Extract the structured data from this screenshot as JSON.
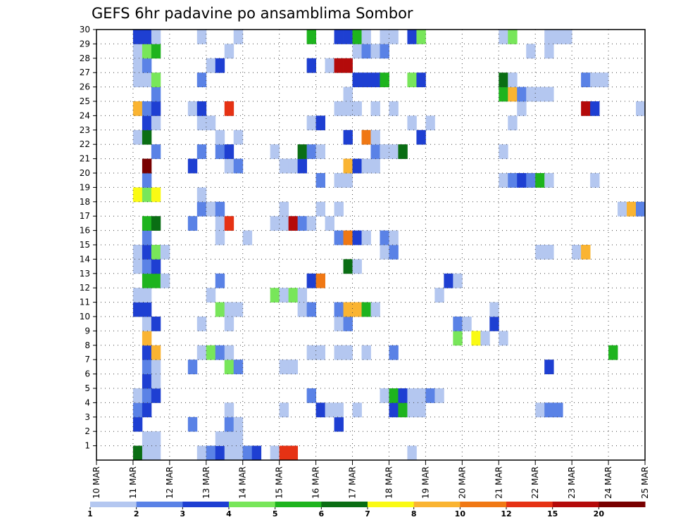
{
  "chart_data": {
    "type": "heatmap",
    "title": "GEFS 6hr padavine po ansamblima Sombor",
    "xlabel": "",
    "ylabel": "",
    "x_ticks": [
      "10 MAR",
      "11 MAR",
      "12 MAR",
      "13 MAR",
      "14 MAR",
      "15 MAR",
      "16 MAR",
      "17 MAR",
      "18 MAR",
      "19 MAR",
      "20 MAR",
      "21 MAR",
      "22 MAR",
      "23 MAR",
      "24 MAR",
      "25 MAR"
    ],
    "y_ticks": [
      "1",
      "2",
      "3",
      "4",
      "5",
      "6",
      "7",
      "8",
      "9",
      "10",
      "11",
      "12",
      "13",
      "14",
      "15",
      "16",
      "17",
      "18",
      "19",
      "20",
      "21",
      "22",
      "23",
      "24",
      "25",
      "26",
      "27",
      "28",
      "29",
      "30"
    ],
    "x_unit": "days since 10 MAR",
    "xlim": [
      0,
      15
    ],
    "ylim": [
      0,
      30
    ],
    "grid": true,
    "colorbar": {
      "bounds": [
        1,
        2,
        3,
        4,
        5,
        6,
        7,
        8,
        10,
        12,
        15,
        20
      ],
      "labels": [
        "1",
        "2",
        "3",
        "4",
        "5",
        "6",
        "7",
        "8",
        "10",
        "12",
        "15",
        "20"
      ],
      "colors": [
        "#b4c7f0",
        "#5a82e6",
        "#1e3fd2",
        "#78e65a",
        "#1eb41e",
        "#0a6e14",
        "#fafa14",
        "#fab432",
        "#f07814",
        "#e63214",
        "#b40a0a",
        "#780000"
      ]
    },
    "cells": [
      [
        1.0,
        0,
        5
      ],
      [
        1.25,
        0,
        0
      ],
      [
        1.5,
        0,
        0
      ],
      [
        2.75,
        0,
        0
      ],
      [
        3.0,
        0,
        1
      ],
      [
        3.25,
        0,
        2
      ],
      [
        3.5,
        0,
        0
      ],
      [
        3.75,
        0,
        0
      ],
      [
        4.0,
        0,
        1
      ],
      [
        4.25,
        0,
        2
      ],
      [
        4.75,
        0,
        0
      ],
      [
        5.0,
        0,
        9
      ],
      [
        5.25,
        0,
        9
      ],
      [
        8.5,
        0,
        0
      ],
      [
        1.25,
        1,
        0
      ],
      [
        1.5,
        1,
        0
      ],
      [
        3.25,
        1,
        0
      ],
      [
        3.5,
        1,
        0
      ],
      [
        3.75,
        1,
        0
      ],
      [
        1.0,
        2,
        2
      ],
      [
        2.5,
        2,
        1
      ],
      [
        3.5,
        2,
        1
      ],
      [
        3.75,
        2,
        0
      ],
      [
        6.5,
        2,
        2
      ],
      [
        1.0,
        3,
        1
      ],
      [
        1.25,
        3,
        2
      ],
      [
        3.5,
        3,
        0
      ],
      [
        5.0,
        3,
        0
      ],
      [
        6.0,
        3,
        2
      ],
      [
        6.25,
        3,
        0
      ],
      [
        6.5,
        3,
        0
      ],
      [
        7.0,
        3,
        0
      ],
      [
        8.0,
        3,
        2
      ],
      [
        8.25,
        3,
        4
      ],
      [
        8.5,
        3,
        0
      ],
      [
        8.75,
        3,
        0
      ],
      [
        12.0,
        3,
        0
      ],
      [
        12.25,
        3,
        1
      ],
      [
        12.5,
        3,
        1
      ],
      [
        1.0,
        4,
        0
      ],
      [
        1.25,
        4,
        1
      ],
      [
        1.5,
        4,
        2
      ],
      [
        5.75,
        4,
        1
      ],
      [
        7.75,
        4,
        0
      ],
      [
        8.0,
        4,
        4
      ],
      [
        8.25,
        4,
        2
      ],
      [
        8.5,
        4,
        0
      ],
      [
        8.75,
        4,
        0
      ],
      [
        9.0,
        4,
        1
      ],
      [
        9.25,
        4,
        0
      ],
      [
        1.25,
        5,
        2
      ],
      [
        1.5,
        5,
        0
      ],
      [
        1.25,
        6,
        1
      ],
      [
        1.5,
        6,
        0
      ],
      [
        2.5,
        6,
        1
      ],
      [
        3.5,
        6,
        3
      ],
      [
        3.75,
        6,
        1
      ],
      [
        5.0,
        6,
        0
      ],
      [
        5.25,
        6,
        0
      ],
      [
        12.25,
        6,
        2
      ],
      [
        1.25,
        7,
        2
      ],
      [
        1.5,
        7,
        7
      ],
      [
        2.75,
        7,
        0
      ],
      [
        3.0,
        7,
        3
      ],
      [
        3.25,
        7,
        1
      ],
      [
        3.5,
        7,
        0
      ],
      [
        5.75,
        7,
        0
      ],
      [
        6.0,
        7,
        0
      ],
      [
        6.5,
        7,
        0
      ],
      [
        6.75,
        7,
        0
      ],
      [
        7.25,
        7,
        0
      ],
      [
        8.0,
        7,
        1
      ],
      [
        14.0,
        7,
        4
      ],
      [
        1.25,
        8,
        7
      ],
      [
        9.75,
        8,
        3
      ],
      [
        10.25,
        8,
        6
      ],
      [
        10.5,
        8,
        0
      ],
      [
        11.0,
        8,
        0
      ],
      [
        1.25,
        9,
        0
      ],
      [
        1.5,
        9,
        2
      ],
      [
        2.75,
        9,
        0
      ],
      [
        3.5,
        9,
        0
      ],
      [
        6.5,
        9,
        0
      ],
      [
        6.75,
        9,
        1
      ],
      [
        9.75,
        9,
        1
      ],
      [
        10.0,
        9,
        0
      ],
      [
        10.75,
        9,
        2
      ],
      [
        1.0,
        10,
        2
      ],
      [
        1.25,
        10,
        2
      ],
      [
        3.25,
        10,
        3
      ],
      [
        3.5,
        10,
        0
      ],
      [
        3.75,
        10,
        0
      ],
      [
        5.5,
        10,
        0
      ],
      [
        5.75,
        10,
        1
      ],
      [
        6.5,
        10,
        1
      ],
      [
        6.75,
        10,
        7
      ],
      [
        7.0,
        10,
        7
      ],
      [
        7.25,
        10,
        4
      ],
      [
        7.5,
        10,
        0
      ],
      [
        10.75,
        10,
        0
      ],
      [
        1.0,
        11,
        0
      ],
      [
        1.25,
        11,
        0
      ],
      [
        3.0,
        11,
        0
      ],
      [
        4.75,
        11,
        3
      ],
      [
        5.0,
        11,
        0
      ],
      [
        5.25,
        11,
        3
      ],
      [
        5.5,
        11,
        0
      ],
      [
        9.25,
        11,
        0
      ],
      [
        1.25,
        12,
        4
      ],
      [
        1.5,
        12,
        4
      ],
      [
        1.75,
        12,
        0
      ],
      [
        3.25,
        12,
        1
      ],
      [
        5.75,
        12,
        2
      ],
      [
        6.0,
        12,
        8
      ],
      [
        9.5,
        12,
        2
      ],
      [
        9.75,
        12,
        0
      ],
      [
        1.0,
        13,
        0
      ],
      [
        1.25,
        13,
        1
      ],
      [
        1.5,
        13,
        2
      ],
      [
        6.75,
        13,
        5
      ],
      [
        7.0,
        13,
        0
      ],
      [
        1.0,
        14,
        0
      ],
      [
        1.25,
        14,
        2
      ],
      [
        1.5,
        14,
        3
      ],
      [
        1.75,
        14,
        0
      ],
      [
        7.75,
        14,
        0
      ],
      [
        8.0,
        14,
        1
      ],
      [
        12.0,
        14,
        0
      ],
      [
        12.25,
        14,
        0
      ],
      [
        13.0,
        14,
        0
      ],
      [
        13.25,
        14,
        7
      ],
      [
        1.25,
        15,
        1
      ],
      [
        3.25,
        15,
        0
      ],
      [
        4.0,
        15,
        0
      ],
      [
        6.5,
        15,
        1
      ],
      [
        6.75,
        15,
        8
      ],
      [
        7.0,
        15,
        2
      ],
      [
        7.25,
        15,
        0
      ],
      [
        7.75,
        15,
        1
      ],
      [
        8.0,
        15,
        0
      ],
      [
        1.25,
        16,
        4
      ],
      [
        1.5,
        16,
        5
      ],
      [
        2.5,
        16,
        1
      ],
      [
        3.25,
        16,
        0
      ],
      [
        3.5,
        16,
        9
      ],
      [
        4.75,
        16,
        0
      ],
      [
        5.0,
        16,
        0
      ],
      [
        5.25,
        16,
        10
      ],
      [
        5.5,
        16,
        1
      ],
      [
        5.75,
        16,
        0
      ],
      [
        6.25,
        16,
        0
      ],
      [
        2.75,
        17,
        1
      ],
      [
        3.0,
        17,
        0
      ],
      [
        3.25,
        17,
        1
      ],
      [
        5.0,
        17,
        0
      ],
      [
        6.0,
        17,
        0
      ],
      [
        6.5,
        17,
        0
      ],
      [
        14.25,
        17,
        0
      ],
      [
        14.5,
        17,
        7
      ],
      [
        14.75,
        17,
        1
      ],
      [
        1.0,
        18,
        6
      ],
      [
        1.25,
        18,
        3
      ],
      [
        1.5,
        18,
        6
      ],
      [
        2.75,
        18,
        0
      ],
      [
        1.25,
        19,
        1
      ],
      [
        6.0,
        19,
        1
      ],
      [
        6.5,
        19,
        0
      ],
      [
        6.75,
        19,
        0
      ],
      [
        11.0,
        19,
        0
      ],
      [
        11.25,
        19,
        1
      ],
      [
        11.5,
        19,
        2
      ],
      [
        11.75,
        19,
        1
      ],
      [
        12.0,
        19,
        4
      ],
      [
        12.25,
        19,
        0
      ],
      [
        13.5,
        19,
        0
      ],
      [
        1.25,
        20,
        11
      ],
      [
        2.5,
        20,
        2
      ],
      [
        3.5,
        20,
        0
      ],
      [
        3.75,
        20,
        1
      ],
      [
        5.0,
        20,
        0
      ],
      [
        5.25,
        20,
        0
      ],
      [
        5.5,
        20,
        2
      ],
      [
        6.75,
        20,
        7
      ],
      [
        7.0,
        20,
        2
      ],
      [
        7.25,
        20,
        0
      ],
      [
        7.5,
        20,
        0
      ],
      [
        1.5,
        21,
        1
      ],
      [
        2.75,
        21,
        1
      ],
      [
        3.25,
        21,
        1
      ],
      [
        3.5,
        21,
        2
      ],
      [
        4.75,
        21,
        0
      ],
      [
        5.5,
        21,
        5
      ],
      [
        5.75,
        21,
        1
      ],
      [
        6.0,
        21,
        0
      ],
      [
        7.5,
        21,
        1
      ],
      [
        7.75,
        21,
        0
      ],
      [
        8.0,
        21,
        0
      ],
      [
        8.25,
        21,
        5
      ],
      [
        11.0,
        21,
        0
      ],
      [
        1.0,
        22,
        0
      ],
      [
        1.25,
        22,
        5
      ],
      [
        3.25,
        22,
        0
      ],
      [
        3.75,
        22,
        0
      ],
      [
        6.75,
        22,
        2
      ],
      [
        7.25,
        22,
        8
      ],
      [
        7.5,
        22,
        0
      ],
      [
        8.75,
        22,
        2
      ],
      [
        1.25,
        23,
        2
      ],
      [
        1.5,
        23,
        0
      ],
      [
        2.75,
        23,
        0
      ],
      [
        3.0,
        23,
        0
      ],
      [
        5.75,
        23,
        0
      ],
      [
        6.0,
        23,
        2
      ],
      [
        8.5,
        23,
        0
      ],
      [
        9.0,
        23,
        0
      ],
      [
        11.25,
        23,
        0
      ],
      [
        1.0,
        24,
        7
      ],
      [
        1.25,
        24,
        1
      ],
      [
        1.5,
        24,
        2
      ],
      [
        2.5,
        24,
        0
      ],
      [
        2.75,
        24,
        2
      ],
      [
        3.5,
        24,
        9
      ],
      [
        6.5,
        24,
        0
      ],
      [
        6.75,
        24,
        0
      ],
      [
        7.0,
        24,
        0
      ],
      [
        7.5,
        24,
        0
      ],
      [
        8.0,
        24,
        0
      ],
      [
        11.5,
        24,
        0
      ],
      [
        13.25,
        24,
        10
      ],
      [
        13.5,
        24,
        2
      ],
      [
        14.75,
        24,
        0
      ],
      [
        1.5,
        25,
        1
      ],
      [
        6.75,
        25,
        0
      ],
      [
        11.0,
        25,
        4
      ],
      [
        11.25,
        25,
        7
      ],
      [
        11.5,
        25,
        1
      ],
      [
        11.75,
        25,
        0
      ],
      [
        12.0,
        25,
        0
      ],
      [
        12.25,
        25,
        0
      ],
      [
        1.0,
        26,
        0
      ],
      [
        1.25,
        26,
        0
      ],
      [
        1.5,
        26,
        3
      ],
      [
        2.75,
        26,
        1
      ],
      [
        7.0,
        26,
        2
      ],
      [
        7.25,
        26,
        2
      ],
      [
        7.5,
        26,
        2
      ],
      [
        7.75,
        26,
        4
      ],
      [
        8.5,
        26,
        3
      ],
      [
        8.75,
        26,
        2
      ],
      [
        11.0,
        26,
        5
      ],
      [
        11.25,
        26,
        0
      ],
      [
        13.25,
        26,
        1
      ],
      [
        13.5,
        26,
        0
      ],
      [
        13.75,
        26,
        0
      ],
      [
        1.0,
        27,
        0
      ],
      [
        1.25,
        27,
        1
      ],
      [
        3.0,
        27,
        0
      ],
      [
        3.25,
        27,
        2
      ],
      [
        5.75,
        27,
        2
      ],
      [
        6.25,
        27,
        0
      ],
      [
        6.5,
        27,
        10
      ],
      [
        6.75,
        27,
        10
      ],
      [
        1.0,
        28,
        0
      ],
      [
        1.25,
        28,
        3
      ],
      [
        1.5,
        28,
        4
      ],
      [
        3.5,
        28,
        0
      ],
      [
        7.0,
        28,
        0
      ],
      [
        7.25,
        28,
        1
      ],
      [
        7.5,
        28,
        0
      ],
      [
        7.75,
        28,
        1
      ],
      [
        11.75,
        28,
        0
      ],
      [
        12.25,
        28,
        0
      ],
      [
        1.0,
        29,
        2
      ],
      [
        1.25,
        29,
        2
      ],
      [
        1.5,
        29,
        0
      ],
      [
        2.75,
        29,
        0
      ],
      [
        3.75,
        29,
        0
      ],
      [
        5.75,
        29,
        4
      ],
      [
        6.5,
        29,
        2
      ],
      [
        6.75,
        29,
        2
      ],
      [
        7.0,
        29,
        4
      ],
      [
        7.25,
        29,
        0
      ],
      [
        7.75,
        29,
        0
      ],
      [
        8.0,
        29,
        0
      ],
      [
        8.5,
        29,
        2
      ],
      [
        8.75,
        29,
        3
      ],
      [
        11.0,
        29,
        0
      ],
      [
        11.25,
        29,
        3
      ],
      [
        12.25,
        29,
        0
      ],
      [
        12.5,
        29,
        0
      ],
      [
        12.75,
        29,
        0
      ]
    ]
  }
}
